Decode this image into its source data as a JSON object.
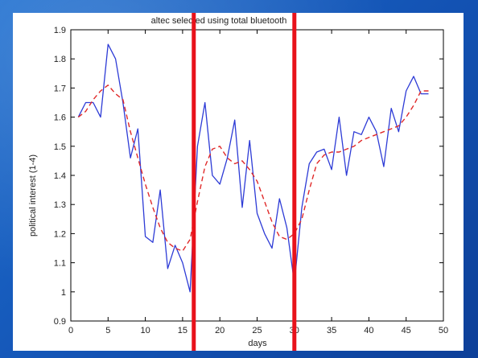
{
  "colors": {
    "slide_background": "#1a5fc4",
    "figure_background": "#ffffff",
    "series_actual": "#2d3bd6",
    "series_smoothed": "#e02a2a",
    "highlight_bars": "#e8121b"
  },
  "chart_data": {
    "type": "line",
    "title": "altec selected using total bluetooth",
    "xlabel": "days",
    "ylabel": "political interest (1-4)",
    "xlim": [
      0,
      50
    ],
    "ylim": [
      0.9,
      1.9
    ],
    "xticks": [
      0,
      5,
      10,
      15,
      20,
      25,
      30,
      35,
      40,
      45,
      50
    ],
    "yticks": [
      0.9,
      1,
      1.1,
      1.2,
      1.3,
      1.4,
      1.5,
      1.6,
      1.7,
      1.8,
      1.9
    ],
    "grid": false,
    "series": [
      {
        "style": "solid",
        "color": "#2d3bd6",
        "x": [
          1,
          2,
          3,
          4,
          5,
          6,
          7,
          8,
          9,
          10,
          11,
          12,
          13,
          14,
          15,
          16,
          17,
          18,
          19,
          20,
          21,
          22,
          23,
          24,
          25,
          26,
          27,
          28,
          29,
          30,
          31,
          32,
          33,
          34,
          35,
          36,
          37,
          38,
          39,
          40,
          41,
          42,
          43,
          44,
          45,
          46,
          47,
          48
        ],
        "y": [
          1.6,
          1.65,
          1.65,
          1.6,
          1.85,
          1.8,
          1.65,
          1.46,
          1.56,
          1.19,
          1.17,
          1.35,
          1.08,
          1.16,
          1.1,
          1.0,
          1.5,
          1.65,
          1.4,
          1.37,
          1.46,
          1.59,
          1.29,
          1.52,
          1.27,
          1.2,
          1.15,
          1.32,
          1.22,
          1.03,
          1.29,
          1.44,
          1.48,
          1.49,
          1.42,
          1.6,
          1.4,
          1.55,
          1.54,
          1.6,
          1.55,
          1.43,
          1.63,
          1.55,
          1.69,
          1.74,
          1.68,
          1.68
        ]
      },
      {
        "style": "dashed",
        "color": "#e02a2a",
        "x": [
          1,
          2,
          3,
          4,
          5,
          6,
          7,
          8,
          9,
          10,
          11,
          12,
          13,
          14,
          15,
          16,
          17,
          18,
          19,
          20,
          21,
          22,
          23,
          24,
          25,
          26,
          27,
          28,
          29,
          30,
          31,
          32,
          33,
          34,
          35,
          36,
          37,
          38,
          39,
          40,
          41,
          42,
          43,
          44,
          45,
          46,
          47,
          48
        ],
        "y": [
          1.6,
          1.62,
          1.66,
          1.69,
          1.71,
          1.68,
          1.66,
          1.55,
          1.46,
          1.37,
          1.29,
          1.22,
          1.17,
          1.15,
          1.14,
          1.18,
          1.31,
          1.43,
          1.49,
          1.5,
          1.46,
          1.44,
          1.45,
          1.42,
          1.38,
          1.31,
          1.24,
          1.19,
          1.18,
          1.2,
          1.25,
          1.35,
          1.44,
          1.47,
          1.48,
          1.48,
          1.49,
          1.5,
          1.52,
          1.53,
          1.54,
          1.55,
          1.56,
          1.57,
          1.6,
          1.64,
          1.69,
          1.69
        ]
      }
    ],
    "highlights": [
      {
        "type": "vertical-bar",
        "x": 16.5,
        "color": "#e8121b"
      },
      {
        "type": "vertical-bar",
        "x": 30,
        "color": "#e8121b"
      }
    ]
  }
}
